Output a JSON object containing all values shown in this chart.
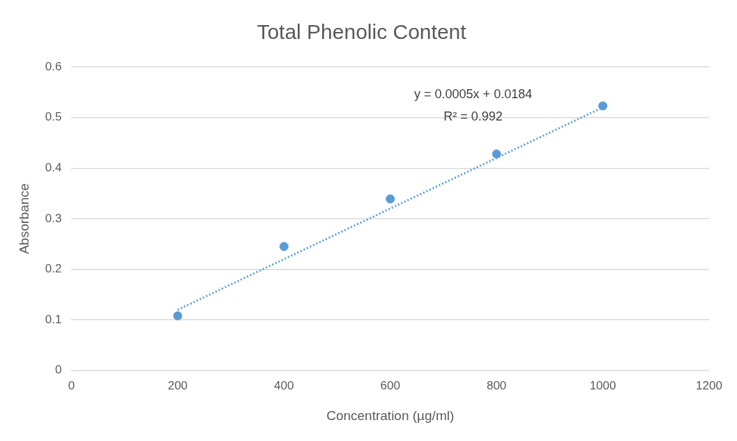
{
  "chart_data": {
    "type": "scatter",
    "title": "Total Phenolic Content",
    "xlabel": "Concentration (µg/ml)",
    "ylabel": "Absorbance",
    "xlim": [
      0,
      1200
    ],
    "xticks": [
      0,
      200,
      400,
      600,
      800,
      1000,
      1200
    ],
    "ylim": [
      0,
      0.6
    ],
    "yticks": [
      0,
      0.1,
      0.2,
      0.3,
      0.4,
      0.5,
      0.6
    ],
    "grid": "y",
    "legend": false,
    "marker": "circle",
    "series": [
      {
        "type": "scatter",
        "color": "#5b9bd5",
        "x": [
          200,
          400,
          600,
          800,
          1000
        ],
        "values": [
          0.108,
          0.245,
          0.339,
          0.428,
          0.523
        ]
      },
      {
        "type": "line",
        "color": "#5b9bd5",
        "x": [
          200,
          1000
        ],
        "values": [
          0.12,
          0.52
        ],
        "line_style": "dotted",
        "marker": "none"
      }
    ],
    "annotations": [
      "y = 0.0005x + 0.0184",
      "R² = 0.992"
    ]
  }
}
